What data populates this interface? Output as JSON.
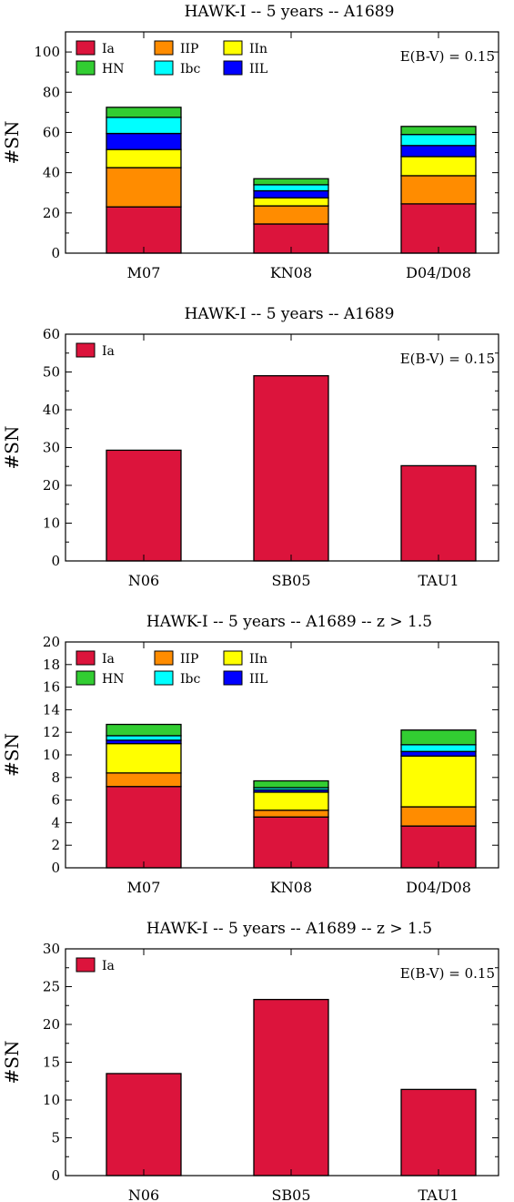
{
  "chart_data": [
    {
      "type": "bar",
      "stacked": true,
      "title": "HAWK-I -- 5 years -- A1689",
      "ylabel": "#SN",
      "ylim": [
        0,
        110
      ],
      "yticks": [
        0,
        20,
        40,
        60,
        80,
        100
      ],
      "categories": [
        "M07",
        "KN08",
        "D04/D08"
      ],
      "annotation": "E(B-V) = 0.15",
      "legend_position": "top-left",
      "series": [
        {
          "name": "Ia",
          "color": "#dc143c",
          "values": [
            23,
            14.5,
            24.5
          ]
        },
        {
          "name": "IIP",
          "color": "#ff8c00",
          "values": [
            19.5,
            9,
            14
          ]
        },
        {
          "name": "IIn",
          "color": "#ffff00",
          "values": [
            9,
            4,
            9.5
          ]
        },
        {
          "name": "IIL",
          "color": "#0000ff",
          "values": [
            8,
            3.5,
            5.5
          ]
        },
        {
          "name": "Ibc",
          "color": "#00ffff",
          "values": [
            8,
            3,
            5.5
          ]
        },
        {
          "name": "HN",
          "color": "#32cd32",
          "values": [
            5,
            3,
            4
          ]
        }
      ],
      "legend_order": [
        "Ia",
        "IIP",
        "IIn",
        "HN",
        "Ibc",
        "IIL"
      ]
    },
    {
      "type": "bar",
      "stacked": false,
      "title": "HAWK-I -- 5 years -- A1689",
      "ylabel": "#SN",
      "ylim": [
        0,
        60
      ],
      "yticks": [
        0,
        10,
        20,
        30,
        40,
        50,
        60
      ],
      "categories": [
        "N06",
        "SB05",
        "TAU1"
      ],
      "annotation": "E(B-V) = 0.15",
      "legend_position": "top-left",
      "series": [
        {
          "name": "Ia",
          "color": "#dc143c",
          "values": [
            29.3,
            49,
            25.2
          ]
        }
      ],
      "legend_order": [
        "Ia"
      ]
    },
    {
      "type": "bar",
      "stacked": true,
      "title": "HAWK-I -- 5 years -- A1689 -- z > 1.5",
      "ylabel": "#SN",
      "ylim": [
        0,
        20
      ],
      "yticks": [
        0,
        2,
        4,
        6,
        8,
        10,
        12,
        14,
        16,
        18,
        20
      ],
      "categories": [
        "M07",
        "KN08",
        "D04/D08"
      ],
      "annotation": "",
      "legend_position": "top-left",
      "series": [
        {
          "name": "Ia",
          "color": "#dc143c",
          "values": [
            7.2,
            4.5,
            3.7
          ]
        },
        {
          "name": "IIP",
          "color": "#ff8c00",
          "values": [
            1.2,
            0.6,
            1.7
          ]
        },
        {
          "name": "IIn",
          "color": "#ffff00",
          "values": [
            2.6,
            1.6,
            4.5
          ]
        },
        {
          "name": "IIL",
          "color": "#0000ff",
          "values": [
            0.3,
            0.2,
            0.4
          ]
        },
        {
          "name": "Ibc",
          "color": "#00ffff",
          "values": [
            0.4,
            0.2,
            0.6
          ]
        },
        {
          "name": "HN",
          "color": "#32cd32",
          "values": [
            1.0,
            0.6,
            1.3
          ]
        }
      ],
      "legend_order": [
        "Ia",
        "IIP",
        "IIn",
        "HN",
        "Ibc",
        "IIL"
      ]
    },
    {
      "type": "bar",
      "stacked": false,
      "title": "HAWK-I -- 5 years -- A1689 -- z > 1.5",
      "ylabel": "#SN",
      "ylim": [
        0,
        30
      ],
      "yticks": [
        0,
        5,
        10,
        15,
        20,
        25,
        30
      ],
      "categories": [
        "N06",
        "SB05",
        "TAU1"
      ],
      "annotation": "E(B-V) = 0.15",
      "legend_position": "top-left",
      "series": [
        {
          "name": "Ia",
          "color": "#dc143c",
          "values": [
            13.5,
            23.3,
            11.4
          ]
        }
      ],
      "legend_order": [
        "Ia"
      ]
    }
  ]
}
